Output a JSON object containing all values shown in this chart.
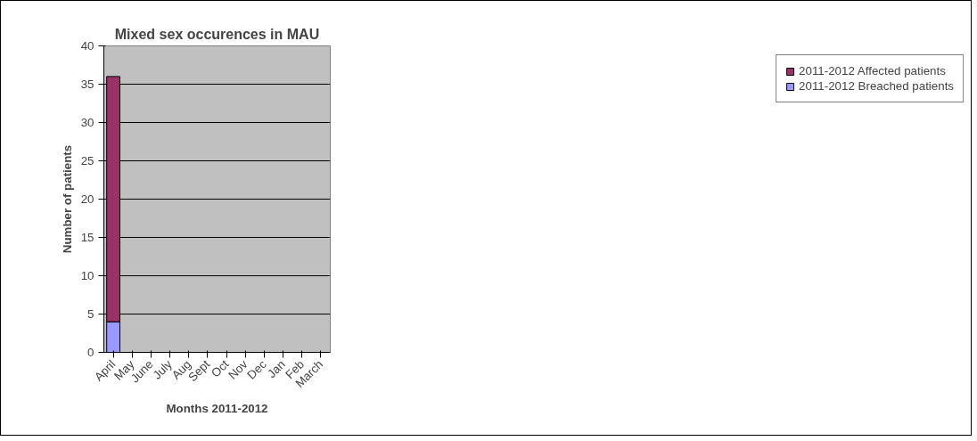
{
  "chart_data": {
    "type": "bar",
    "title": "Mixed sex occurences in MAU",
    "xlabel": "Months 2011-2012",
    "ylabel": "Number of patients",
    "categories": [
      "April",
      "May",
      "June",
      "July",
      "Aug",
      "Sept",
      "Oct",
      "Nov",
      "Dec",
      "Jan",
      "Feb",
      "March"
    ],
    "stacked": true,
    "series": [
      {
        "name": "2011-2012 Breached patients",
        "color": "#9999ff",
        "values": [
          4,
          null,
          null,
          null,
          null,
          null,
          null,
          null,
          null,
          null,
          null,
          null
        ]
      },
      {
        "name": "2011-2012 Affected patients",
        "color": "#993366",
        "values": [
          32,
          null,
          null,
          null,
          null,
          null,
          null,
          null,
          null,
          null,
          null,
          null
        ]
      }
    ],
    "ylim": [
      0,
      40
    ],
    "yticks": [
      0,
      5,
      10,
      15,
      20,
      25,
      30,
      35,
      40
    ],
    "grid": "y",
    "legend": "right"
  }
}
